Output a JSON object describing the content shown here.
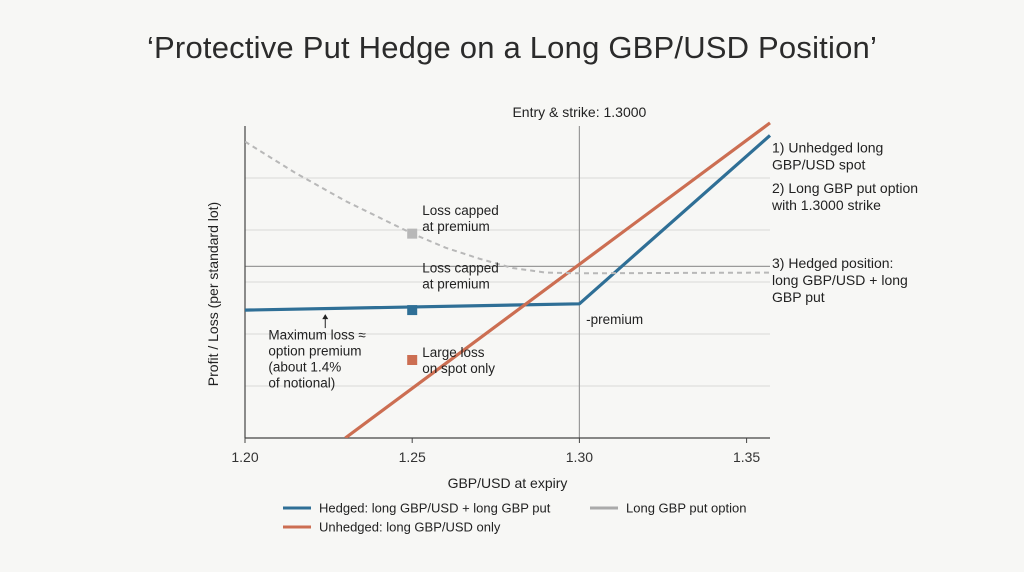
{
  "title": "‘Protective Put Hedge on a Long GBP/USD Position’",
  "chart_data": {
    "type": "line",
    "xlabel": "GBP/USD at expiry",
    "ylabel": "Profit / Loss (per standard lot)",
    "xlim": [
      1.2,
      1.357
    ],
    "ylim": [
      -5.5,
      4.5
    ],
    "x_ticks": [
      "1.20",
      "1.25",
      "1.30",
      "1.35"
    ],
    "x_tick_values": [
      1.2,
      1.25,
      1.3,
      1.35
    ],
    "grid": "horizontal",
    "zero_line_y": 0,
    "strike_line": {
      "x": 1.3,
      "label": "Entry & strike: 1.3000"
    },
    "series": [
      {
        "name": "Hedged: long GBP/USD + long GBP put",
        "color": "#2f6f96",
        "style": "solid",
        "points": [
          [
            1.2,
            -1.4
          ],
          [
            1.3,
            -1.2
          ],
          [
            1.357,
            4.2
          ]
        ]
      },
      {
        "name": "Unhedged: long GBP/USD only",
        "color": "#cc6e52",
        "style": "solid",
        "points": [
          [
            1.23,
            -5.5
          ],
          [
            1.357,
            4.6
          ]
        ]
      },
      {
        "name": "Long GBP put option",
        "color": "#b8b8b8",
        "style": "dashed",
        "points": [
          [
            1.2,
            4.0
          ],
          [
            1.215,
            3.0
          ],
          [
            1.23,
            2.1
          ],
          [
            1.25,
            1.05
          ],
          [
            1.26,
            0.6
          ],
          [
            1.27,
            0.25
          ],
          [
            1.28,
            -0.05
          ],
          [
            1.29,
            -0.2
          ],
          [
            1.3,
            -0.22
          ],
          [
            1.357,
            -0.2
          ]
        ]
      }
    ],
    "markers": [
      {
        "x": 1.25,
        "y": 1.05,
        "color": "#b8b8b8"
      },
      {
        "x": 1.25,
        "y": -1.4,
        "color": "#2f6f96"
      },
      {
        "x": 1.25,
        "y": -3.0,
        "color": "#cc6e52"
      }
    ],
    "annotations": [
      {
        "lines": [
          "Loss capped",
          "at premium"
        ],
        "x": 1.253,
        "y": 1.65
      },
      {
        "lines": [
          "Loss capped",
          "at premium"
        ],
        "x": 1.253,
        "y": -0.2
      },
      {
        "lines": [
          "-premium"
        ],
        "x": 1.302,
        "y": -1.85
      },
      {
        "lines": [
          "Maximum loss ≈",
          "option premium",
          "(about 1.4%",
          "of notional)"
        ],
        "x": 1.207,
        "y": -2.35
      },
      {
        "lines": [
          "Large loss",
          "on spot only"
        ],
        "x": 1.253,
        "y": -2.9
      }
    ],
    "right_labels": [
      {
        "lines": [
          "1) Unhedged long",
          "GBP/USD spot"
        ],
        "y": 3.65
      },
      {
        "lines": [
          "2) Long GBP put option",
          "with 1.3000 strike"
        ],
        "y": 2.35
      },
      {
        "lines": [
          "3) Hedged position:",
          "long GBP/USD + long",
          "GBP put"
        ],
        "y": -0.05
      }
    ],
    "legend": {
      "placement": "bottom",
      "entries": [
        {
          "label": "Hedged: long GBP/USD + long GBP put",
          "color": "#2f6f96",
          "style": "solid"
        },
        {
          "label": "Long GBP put option",
          "color": "#aaaaaa",
          "style": "solid"
        },
        {
          "label": "Unhedged: long GBP/USD only",
          "color": "#cc6e52",
          "style": "solid"
        }
      ]
    }
  }
}
